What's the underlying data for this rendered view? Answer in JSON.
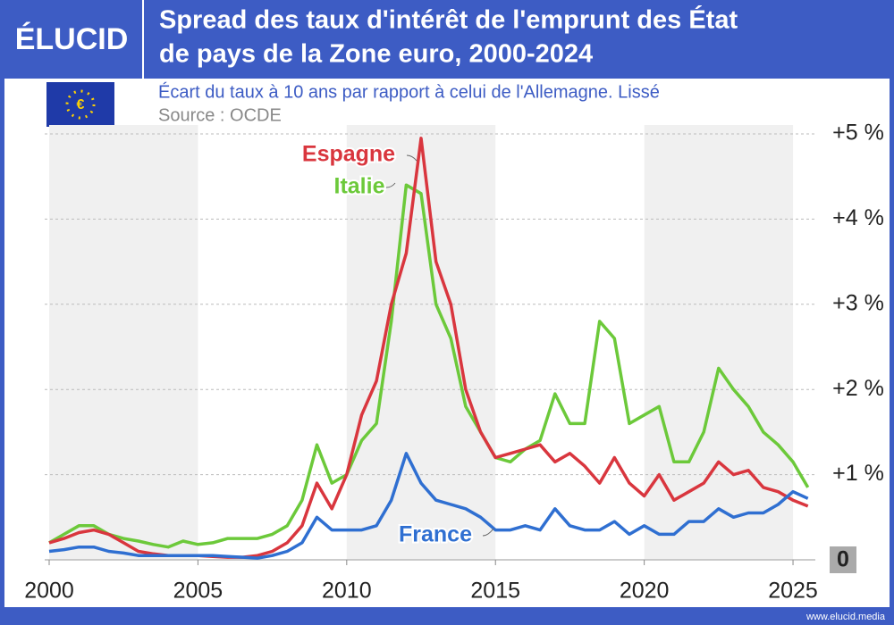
{
  "brand": "ÉLUCID",
  "footer": "www.elucid.media",
  "chart_data": {
    "type": "line",
    "title": [
      "Spread des taux d'intérêt de l'emprunt des État",
      "de pays de la Zone euro, 2000-2024"
    ],
    "subtitle": "Écart du taux à 10 ans par rapport à celui de l'Allemagne. Lissé",
    "source": "Source : OCDE",
    "x": [
      2000,
      2000.5,
      2001,
      2001.5,
      2002,
      2002.5,
      2003,
      2003.5,
      2004,
      2004.5,
      2005,
      2005.5,
      2006,
      2006.5,
      2007,
      2007.5,
      2008,
      2008.5,
      2009,
      2009.5,
      2010,
      2010.5,
      2011,
      2011.5,
      2012,
      2012.5,
      2013,
      2013.5,
      2014,
      2014.5,
      2015,
      2015.5,
      2016,
      2016.5,
      2017,
      2017.5,
      2018,
      2018.5,
      2019,
      2019.5,
      2020,
      2020.5,
      2021,
      2021.5,
      2022,
      2022.5,
      2023,
      2023.5,
      2024,
      2024.5,
      2025,
      2025.5
    ],
    "series": [
      {
        "name": "Italie",
        "color": "#6cc93a",
        "values": [
          0.2,
          0.3,
          0.4,
          0.4,
          0.3,
          0.25,
          0.22,
          0.18,
          0.15,
          0.22,
          0.18,
          0.2,
          0.25,
          0.25,
          0.25,
          0.3,
          0.4,
          0.7,
          1.35,
          0.9,
          1.0,
          1.4,
          1.6,
          2.8,
          4.4,
          4.3,
          3.0,
          2.6,
          1.8,
          1.5,
          1.2,
          1.15,
          1.3,
          1.4,
          1.95,
          1.6,
          1.6,
          2.8,
          2.6,
          1.6,
          1.7,
          1.8,
          1.15,
          1.15,
          1.5,
          2.25,
          2.0,
          1.8,
          1.5,
          1.35,
          1.15,
          0.85
        ]
      },
      {
        "name": "Espagne",
        "color": "#d9363e",
        "values": [
          0.2,
          0.25,
          0.32,
          0.35,
          0.3,
          0.2,
          0.1,
          0.07,
          0.05,
          0.05,
          0.05,
          0.04,
          0.03,
          0.03,
          0.05,
          0.1,
          0.2,
          0.4,
          0.9,
          0.6,
          1.0,
          1.7,
          2.1,
          3.0,
          3.6,
          4.95,
          3.5,
          3.0,
          2.0,
          1.5,
          1.2,
          1.25,
          1.3,
          1.35,
          1.15,
          1.25,
          1.1,
          0.9,
          1.2,
          0.9,
          0.75,
          1.0,
          0.7,
          0.8,
          0.9,
          1.15,
          1.0,
          1.05,
          0.85,
          0.8,
          0.7,
          0.63
        ]
      },
      {
        "name": "France",
        "color": "#2f6fd1",
        "values": [
          0.1,
          0.12,
          0.15,
          0.15,
          0.1,
          0.08,
          0.05,
          0.05,
          0.05,
          0.05,
          0.05,
          0.05,
          0.04,
          0.03,
          0.02,
          0.05,
          0.1,
          0.2,
          0.5,
          0.35,
          0.35,
          0.35,
          0.4,
          0.7,
          1.25,
          0.9,
          0.7,
          0.65,
          0.6,
          0.5,
          0.35,
          0.35,
          0.4,
          0.35,
          0.6,
          0.4,
          0.35,
          0.35,
          0.45,
          0.3,
          0.4,
          0.3,
          0.3,
          0.45,
          0.45,
          0.6,
          0.5,
          0.55,
          0.55,
          0.65,
          0.8,
          0.72
        ]
      }
    ],
    "xlim": [
      2000,
      2025.75
    ],
    "xticks": [
      2000,
      2005,
      2010,
      2015,
      2020,
      2025
    ],
    "ylim": [
      0,
      5
    ],
    "yticks": [
      0,
      {
        "value": 1,
        "label": "+1 %"
      },
      {
        "value": 2,
        "label": "+2 %"
      },
      {
        "value": 3,
        "label": "+3 %"
      },
      {
        "value": 4,
        "label": "+4 %"
      },
      {
        "value": 5,
        "label": "+5 %"
      }
    ],
    "grid": true
  }
}
